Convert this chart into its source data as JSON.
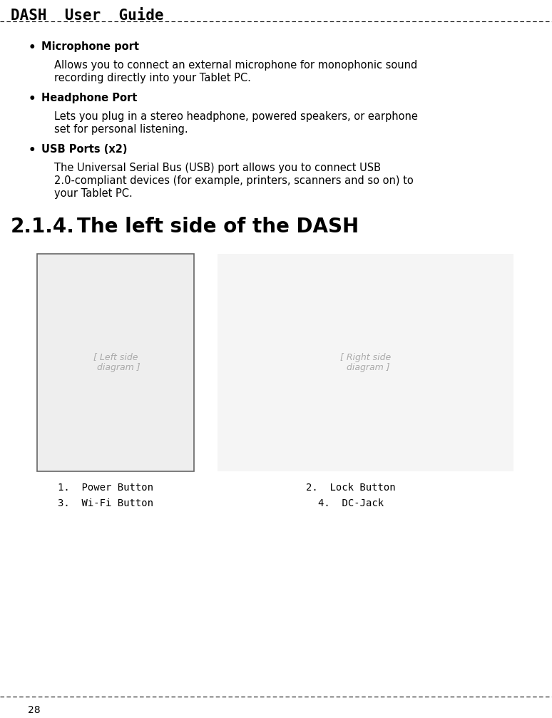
{
  "bg_color": "#ffffff",
  "header_text": "DASH  User  Guide",
  "header_font_size": 15,
  "header_font_family": "monospace",
  "header_font_weight": "bold",
  "text_color": "#000000",
  "bullet_items": [
    {
      "bold_text": "Microphone port",
      "body_text": "Allows you to connect an external microphone for monophonic sound\nrecording directly into your Tablet PC."
    },
    {
      "bold_text": "Headphone Port",
      "body_text": "Lets you plug in a stereo headphone, powered speakers, or earphone\nset for personal listening."
    },
    {
      "bold_text": "USB Ports (x2)",
      "body_text": "The Universal Serial Bus (USB) port allows you to connect USB\n2.0-compliant devices (for example, printers, scanners and so on) to\nyour Tablet PC."
    }
  ],
  "section_number": "2.1.4.",
  "section_title": "The left side of the DASH",
  "section_font_size": 20,
  "caption_col1": [
    "1.  Power Button",
    "3.  Wi-Fi Button"
  ],
  "caption_col2": [
    "2.  Lock Button",
    "4.  DC-Jack"
  ],
  "caption_font_size": 10,
  "page_number": "28",
  "body_font_size": 10.5,
  "bold_font_size": 10.5,
  "bullet_font_size": 12
}
